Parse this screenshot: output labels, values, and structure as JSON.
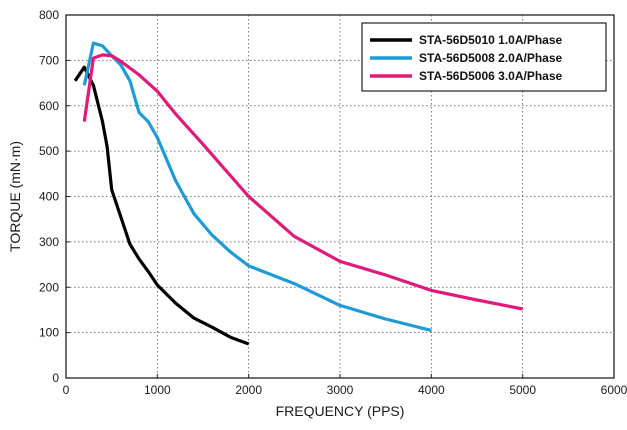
{
  "chart_data": {
    "type": "line",
    "xlabel": "FREQUENCY (PPS)",
    "ylabel": "TORQUE (mN·m)",
    "xlim": [
      0,
      6000
    ],
    "ylim": [
      0,
      800
    ],
    "xticks": [
      0,
      1000,
      2000,
      3000,
      4000,
      5000,
      6000
    ],
    "yticks": [
      0,
      100,
      200,
      300,
      400,
      500,
      600,
      700,
      800
    ],
    "grid": true,
    "legend_position": "top-right",
    "series": [
      {
        "name": "STA-56D5010  1.0A/Phase",
        "color": "#000000",
        "x": [
          100,
          200,
          300,
          400,
          450,
          500,
          600,
          700,
          800,
          900,
          1000,
          1200,
          1400,
          1600,
          1800,
          2000
        ],
        "y": [
          655,
          685,
          645,
          565,
          510,
          415,
          355,
          295,
          262,
          235,
          205,
          165,
          132,
          112,
          90,
          75
        ]
      },
      {
        "name": "STA-56D5008  2.0A/Phase",
        "color": "#1e9ad6",
        "x": [
          200,
          300,
          400,
          500,
          600,
          700,
          800,
          900,
          1000,
          1200,
          1400,
          1600,
          1800,
          2000,
          2500,
          3000,
          3500,
          4000
        ],
        "y": [
          645,
          738,
          732,
          710,
          690,
          655,
          585,
          565,
          530,
          435,
          362,
          315,
          278,
          247,
          208,
          160,
          130,
          105
        ]
      },
      {
        "name": "STA-56D5006  3.0A/Phase",
        "color": "#e0197a",
        "x": [
          200,
          300,
          400,
          500,
          600,
          800,
          1000,
          1200,
          1500,
          2000,
          2500,
          3000,
          3500,
          4000,
          4500,
          5000
        ],
        "y": [
          565,
          705,
          712,
          710,
          698,
          668,
          632,
          582,
          515,
          400,
          312,
          257,
          227,
          193,
          172,
          152
        ]
      }
    ]
  }
}
